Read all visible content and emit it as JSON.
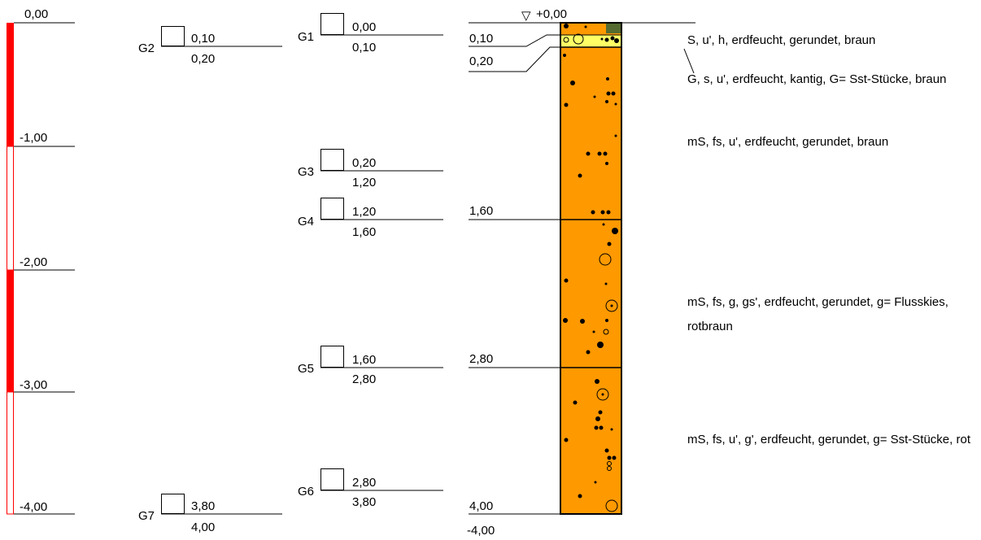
{
  "depth_scale": {
    "ticks": [
      "0,00",
      "-1,00",
      "-2,00",
      "-3,00",
      "-4,00"
    ],
    "shaded_segments": [
      [
        0,
        1
      ],
      [
        2,
        3
      ]
    ],
    "color": "#ff0000"
  },
  "samples": [
    {
      "id": "G1",
      "top": "0,00",
      "bottom": "0,10"
    },
    {
      "id": "G2",
      "top": "0,10",
      "bottom": "0,20"
    },
    {
      "id": "G3",
      "top": "0,20",
      "bottom": "1,20"
    },
    {
      "id": "G4",
      "top": "1,20",
      "bottom": "1,60"
    },
    {
      "id": "G5",
      "top": "1,60",
      "bottom": "2,80"
    },
    {
      "id": "G6",
      "top": "2,80",
      "bottom": "3,80"
    },
    {
      "id": "G7",
      "top": "3,80",
      "bottom": "4,00"
    }
  ],
  "profile": {
    "surface_label": "+0,00",
    "surface_symbol": "▽",
    "boundaries": [
      "0,10",
      "0,20",
      "1,60",
      "2,80",
      "4,00"
    ],
    "end_depth": "-4,00"
  },
  "layers": [
    {
      "from": 0.0,
      "to": 0.1,
      "color": "#ff9900",
      "description": "S, u', h, erdfeucht, gerundet, braun"
    },
    {
      "from": 0.1,
      "to": 0.2,
      "color": "#ffff66",
      "description": "G, s, u', erdfeucht, kantig, G= Sst-Stücke, braun"
    },
    {
      "from": 0.2,
      "to": 1.6,
      "color": "#ff9900",
      "description": "mS, fs, u', erdfeucht, gerundet, braun"
    },
    {
      "from": 1.6,
      "to": 2.8,
      "color": "#ff9900",
      "description": "mS, fs, g, gs', erdfeucht, gerundet, g= Flusskies, rotbraun"
    },
    {
      "from": 2.8,
      "to": 4.0,
      "color": "#ff9900",
      "description": "mS, fs, u', g', erdfeucht, gerundet, g= Sst-Stücke, rot"
    }
  ],
  "humus_color": "#556b2f"
}
